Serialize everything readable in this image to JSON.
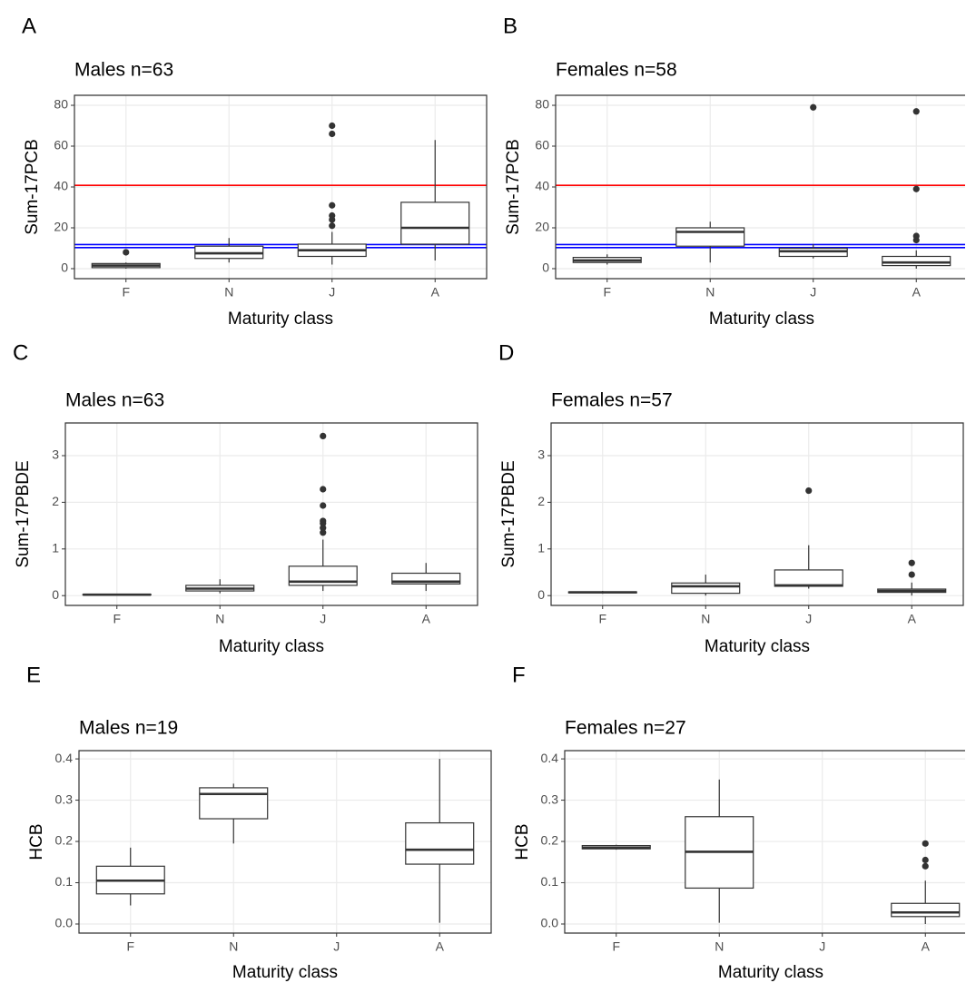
{
  "chart_data": [
    {
      "type": "box",
      "panel": "A",
      "title": "Males n=63",
      "ylabel": "Sum-17PCB",
      "xlabel": "Maturity class",
      "categories": [
        "F",
        "N",
        "J",
        "A"
      ],
      "boxes": [
        {
          "min": 0,
          "q1": 0.5,
          "median": 1.5,
          "q3": 2.5,
          "max": 3,
          "outliers": [
            8
          ]
        },
        {
          "min": 3,
          "q1": 5,
          "median": 7.5,
          "q3": 11,
          "max": 15,
          "outliers": []
        },
        {
          "min": 2,
          "q1": 6,
          "median": 9,
          "q3": 12,
          "max": 18,
          "outliers": [
            21,
            24,
            26,
            31,
            66,
            70
          ]
        },
        {
          "min": 4,
          "q1": 12,
          "median": 20,
          "q3": 32.5,
          "max": 63,
          "outliers": []
        }
      ],
      "hlines": [
        {
          "value": 40.8,
          "color": "#ff0000"
        },
        {
          "value": 11.8,
          "color": "#0000ff"
        },
        {
          "value": 10.3,
          "color": "#0000ff"
        }
      ],
      "ylim": [
        -4.9,
        84.9
      ],
      "yticks": [
        0,
        20,
        40,
        60,
        80
      ],
      "grid": true
    },
    {
      "type": "box",
      "panel": "B",
      "title": "Females n=58",
      "ylabel": "Sum-17PCB",
      "xlabel": "Maturity class",
      "categories": [
        "F",
        "N",
        "J",
        "A"
      ],
      "boxes": [
        {
          "min": 2,
          "q1": 3,
          "median": 4,
          "q3": 5.5,
          "max": 7,
          "outliers": []
        },
        {
          "min": 3,
          "q1": 11,
          "median": 18,
          "q3": 20,
          "max": 23,
          "outliers": []
        },
        {
          "min": 5,
          "q1": 6,
          "median": 8.5,
          "q3": 10,
          "max": 12,
          "outliers": [
            79
          ]
        },
        {
          "min": 0,
          "q1": 1.5,
          "median": 3,
          "q3": 6,
          "max": 9,
          "outliers": [
            14,
            16,
            39,
            77
          ]
        }
      ],
      "hlines": [
        {
          "value": 40.8,
          "color": "#ff0000"
        },
        {
          "value": 11.8,
          "color": "#0000ff"
        },
        {
          "value": 10.3,
          "color": "#0000ff"
        }
      ],
      "ylim": [
        -4.9,
        84.9
      ],
      "yticks": [
        0,
        20,
        40,
        60,
        80
      ],
      "grid": true
    },
    {
      "type": "box",
      "panel": "C",
      "title": "Males n=63",
      "ylabel": "Sum-17PBDE",
      "xlabel": "Maturity class",
      "categories": [
        "F",
        "N",
        "J",
        "A"
      ],
      "boxes": [
        {
          "min": 0.01,
          "q1": 0.015,
          "median": 0.02,
          "q3": 0.025,
          "max": 0.03,
          "outliers": []
        },
        {
          "min": 0.05,
          "q1": 0.1,
          "median": 0.15,
          "q3": 0.22,
          "max": 0.35,
          "outliers": []
        },
        {
          "min": 0.1,
          "q1": 0.22,
          "median": 0.3,
          "q3": 0.63,
          "max": 1.2,
          "outliers": [
            1.35,
            1.45,
            1.55,
            1.6,
            1.93,
            2.28,
            3.42
          ]
        },
        {
          "min": 0.1,
          "q1": 0.25,
          "median": 0.3,
          "q3": 0.48,
          "max": 0.7,
          "outliers": []
        }
      ],
      "ylim": [
        -0.21,
        3.7
      ],
      "yticks": [
        0,
        1,
        2,
        3
      ],
      "grid": true
    },
    {
      "type": "box",
      "panel": "D",
      "title": "Females n=57",
      "ylabel": "Sum-17PBDE",
      "xlabel": "Maturity class",
      "categories": [
        "F",
        "N",
        "J",
        "A"
      ],
      "boxes": [
        {
          "min": 0.04,
          "q1": 0.06,
          "median": 0.07,
          "q3": 0.08,
          "max": 0.1,
          "outliers": []
        },
        {
          "min": 0,
          "q1": 0.05,
          "median": 0.2,
          "q3": 0.27,
          "max": 0.45,
          "outliers": []
        },
        {
          "min": 0.15,
          "q1": 0.2,
          "median": 0.22,
          "q3": 0.55,
          "max": 1.08,
          "outliers": [
            2.25
          ]
        },
        {
          "min": 0,
          "q1": 0.07,
          "median": 0.1,
          "q3": 0.14,
          "max": 0.28,
          "outliers": [
            0.45,
            0.7
          ]
        }
      ],
      "ylim": [
        -0.21,
        3.7
      ],
      "yticks": [
        0,
        1,
        2,
        3
      ],
      "grid": true
    },
    {
      "type": "box",
      "panel": "E",
      "title": "Males n=19",
      "ylabel": "HCB",
      "xlabel": "Maturity class",
      "categories": [
        "F",
        "N",
        "J",
        "A"
      ],
      "boxes": [
        {
          "min": 0.045,
          "q1": 0.073,
          "median": 0.105,
          "q3": 0.14,
          "max": 0.185,
          "outliers": []
        },
        {
          "min": 0.195,
          "q1": 0.255,
          "median": 0.315,
          "q3": 0.33,
          "max": 0.34,
          "outliers": []
        },
        null,
        {
          "min": 0.003,
          "q1": 0.145,
          "median": 0.18,
          "q3": 0.245,
          "max": 0.4,
          "outliers": []
        }
      ],
      "ylim": [
        -0.022,
        0.42
      ],
      "yticks": [
        {
          "value": 0,
          "label": "0.0"
        },
        0.1,
        0.2,
        0.3,
        0.4
      ],
      "grid": true
    },
    {
      "type": "box",
      "panel": "F",
      "title": "Females n=27",
      "ylabel": "HCB",
      "xlabel": "Maturity class",
      "categories": [
        "F",
        "N",
        "J",
        "A"
      ],
      "boxes": [
        {
          "min": 0.18,
          "q1": 0.182,
          "median": 0.185,
          "q3": 0.19,
          "max": 0.192,
          "outliers": []
        },
        {
          "min": 0.003,
          "q1": 0.087,
          "median": 0.175,
          "q3": 0.26,
          "max": 0.35,
          "outliers": []
        },
        null,
        {
          "min": 0,
          "q1": 0.018,
          "median": 0.028,
          "q3": 0.05,
          "max": 0.105,
          "outliers": [
            0.14,
            0.155,
            0.195
          ]
        }
      ],
      "ylim": [
        -0.022,
        0.42
      ],
      "yticks": [
        {
          "value": 0,
          "label": "0.0"
        },
        0.1,
        0.2,
        0.3,
        0.4
      ],
      "grid": true
    }
  ]
}
